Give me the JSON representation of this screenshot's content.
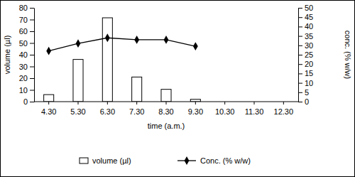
{
  "chart_data": {
    "type": "bar",
    "categories": [
      "4.30",
      "5.30",
      "6.30",
      "7.30",
      "8.30",
      "9.30",
      "10.30",
      "11.30",
      "12.30"
    ],
    "xlabel": "time (a.m.)",
    "ylabel": "volume (µl)",
    "y2label": "conc. (% w/w)",
    "ylim": [
      0,
      80
    ],
    "yticks": [
      0,
      10,
      20,
      30,
      40,
      50,
      60,
      70,
      80
    ],
    "y2lim": [
      0,
      50
    ],
    "y2ticks": [
      0,
      5,
      10,
      15,
      20,
      25,
      30,
      35,
      40,
      45,
      50
    ],
    "legend": "bottom",
    "series": [
      {
        "name": "volume (µl)",
        "type": "bar",
        "color": "#ffffff",
        "values": [
          6,
          36,
          71.5,
          21,
          10.5,
          2,
          null,
          null,
          null
        ]
      },
      {
        "name": "Conc. (% w/w)",
        "type": "line",
        "axis": "y2",
        "color": "#000000",
        "marker": "diamond",
        "values": [
          27,
          31,
          34,
          33,
          33,
          29.5,
          null,
          null,
          null
        ]
      }
    ]
  }
}
